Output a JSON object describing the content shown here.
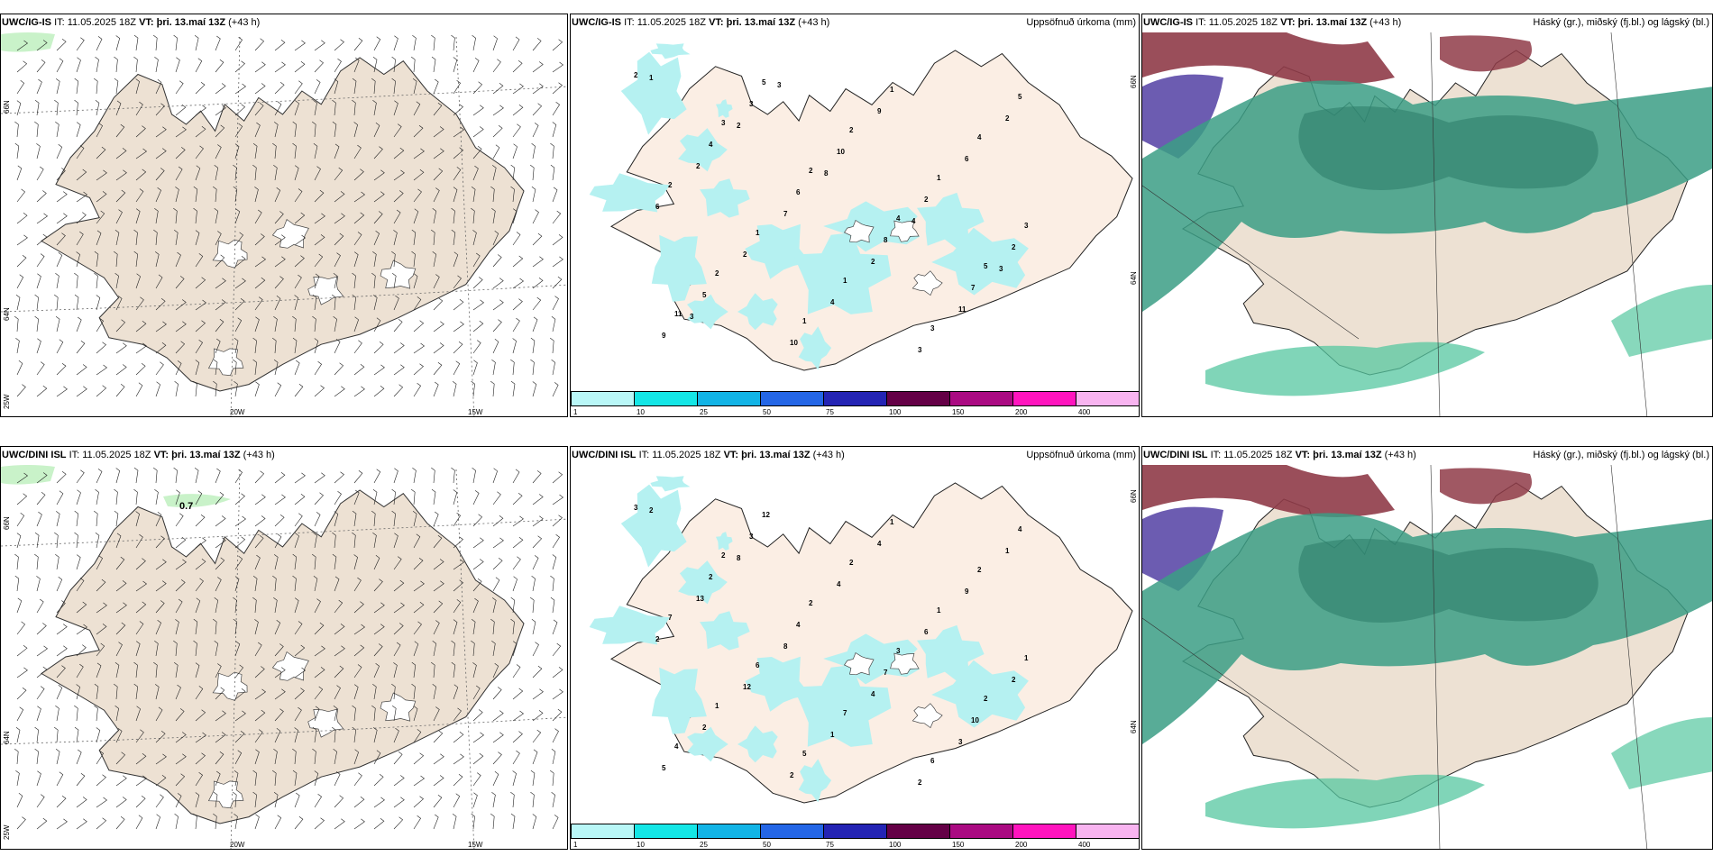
{
  "rows": [
    {
      "model": "UWC/IG-IS",
      "it_label": "IT:",
      "it_value": "11.05.2025 18Z",
      "vt_label": "VT:",
      "vt_value": "þri. 13.maí 13Z",
      "lead": "(+43 h)"
    },
    {
      "model": "UWC/DINI ISL",
      "it_label": "IT:",
      "it_value": "11.05.2025 18Z",
      "vt_label": "VT:",
      "vt_value": "þri. 13.maí 13Z",
      "lead": "(+43 h)"
    }
  ],
  "precip_title": "Uppsöfnuð úrkoma (mm)",
  "cloud_title": "Háský (gr.), miðský (fj.bl.) og lágský (bl.)",
  "lat_labels": {
    "n66": "66N",
    "n64": "64N",
    "w25": "25W",
    "w20": "20W",
    "w15": "15W"
  },
  "wind_label_value": "0.7",
  "colorbar": {
    "colors": [
      "#b9f7f7",
      "#14e6e6",
      "#12b4e6",
      "#2466e6",
      "#2424b4",
      "#640046",
      "#aa0a82",
      "#ff14be",
      "#f8b4f0"
    ],
    "labels": [
      "1",
      "10",
      "25",
      "50",
      "75",
      "100",
      "150",
      "200",
      "400"
    ]
  },
  "precip_numbers_top": [
    "2",
    "3",
    "2",
    "4",
    "5",
    "11",
    "5",
    "2",
    "1",
    "3",
    "2",
    "1",
    "1",
    "4",
    "2",
    "1",
    "1",
    "3",
    "5",
    "4",
    "6",
    "8",
    "7",
    "9",
    "3",
    "10",
    "2",
    "2",
    "5",
    "10",
    "9",
    "6",
    "6",
    "2",
    "4",
    "3",
    "2",
    "2",
    "7",
    "2",
    "11",
    "1",
    "2",
    "8",
    "4",
    "3",
    "3",
    "3"
  ],
  "precip_numbers_bottom": [
    "3",
    "2",
    "2",
    "3",
    "2",
    "4",
    "12",
    "2",
    "1",
    "1",
    "1",
    "5",
    "1",
    "2",
    "7",
    "6",
    "7",
    "6",
    "4",
    "2",
    "4",
    "7",
    "10",
    "5",
    "3",
    "4",
    "6",
    "2",
    "2",
    "2",
    "4",
    "9",
    "2",
    "12",
    "1",
    "2",
    "1",
    "13",
    "8",
    "4",
    "3",
    "2",
    "8"
  ],
  "colors": {
    "land": "#ede1d3",
    "precip": "#b5f1f1",
    "cloud_high": "#8f3b48",
    "cloud_mid": "#5c4aa8",
    "cloud_low": "#3b9d85"
  }
}
